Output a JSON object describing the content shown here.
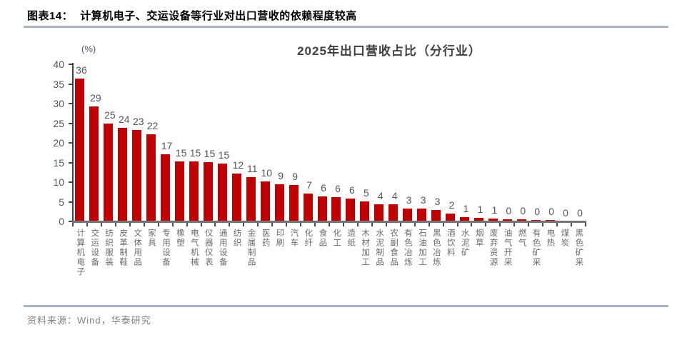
{
  "figure": {
    "label": "图表14：",
    "headline": "计算机电子、交运设备等行业对出口营收的依赖程度较高"
  },
  "chart_data": {
    "type": "bar",
    "title": "2025年出口营收占比（分行业）",
    "unit_label": "(%)",
    "xlabel": "",
    "ylabel": "(%)",
    "ylim": [
      0,
      40
    ],
    "y_ticks": [
      0,
      5,
      10,
      15,
      20,
      25,
      30,
      35,
      40
    ],
    "grid": false,
    "legend_position": "none",
    "categories": [
      "计算机电子",
      "交运设备",
      "纺织服装",
      "皮革制鞋",
      "文体用品",
      "家具",
      "专用设备",
      "橡塑",
      "电气机械",
      "仪器仪表",
      "通用设备",
      "纺织",
      "金属制品",
      "医药",
      "印刷",
      "汽车",
      "化纤",
      "食品",
      "化工",
      "造纸",
      "木材加工",
      "水泥制品",
      "农副食品",
      "有色冶炼",
      "石油加工",
      "黑色冶炼",
      "酒饮料",
      "水泥矿",
      "烟草",
      "废弃资源",
      "油气开采",
      "燃气",
      "有色矿采",
      "电热",
      "煤炭",
      "黑色矿采"
    ],
    "values": [
      36,
      29,
      25,
      24,
      23,
      22,
      17,
      15,
      15,
      15,
      15,
      12,
      11,
      10,
      9,
      9,
      7,
      6,
      6,
      6,
      5,
      4,
      4,
      3,
      3,
      3,
      2,
      1,
      1,
      1,
      0,
      0,
      0,
      0,
      0,
      0
    ],
    "bar_heights_precise": [
      36.4,
      29.3,
      24.9,
      23.8,
      23.3,
      22.1,
      17.0,
      15.2,
      15.2,
      15.0,
      14.8,
      12.1,
      11.2,
      10.2,
      9.5,
      9.3,
      7.0,
      6.4,
      6.2,
      5.9,
      5.0,
      4.4,
      4.3,
      3.3,
      3.2,
      2.9,
      2.0,
      1.0,
      0.9,
      0.8,
      0.5,
      0.5,
      0.4,
      0.3,
      0.0,
      0.0
    ],
    "bar_color": "#c00000",
    "label_color": "#4c5761",
    "axis_color": "#3f3f3f"
  },
  "source": {
    "text": "资料来源：Wind，华泰研究"
  },
  "colors": {
    "rule": "#a6b4c3",
    "bar": "#c00000",
    "title_text": "#3f3f3f",
    "category_text": "#6b6b6b",
    "source_text": "#828282"
  }
}
